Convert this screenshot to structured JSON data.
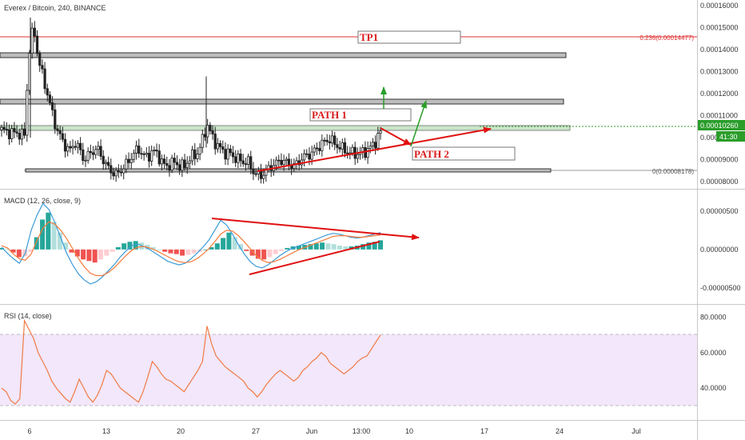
{
  "price_pane": {
    "title": "Everex / Bitcoin, 240, BINANCE",
    "current_price": "0.00010260",
    "countdown": "41:30",
    "fib_top_label": "0.236(0.00014477)",
    "fib_bottom_label": "0(0.00008178)"
  },
  "macd_pane": {
    "title": "MACD (12, 26, close, 9)"
  },
  "rsi_pane": {
    "title": "RSI (14, close)"
  },
  "annotations": {
    "tp1": "TP1",
    "path1": "PATH 1",
    "path2": "PATH 2"
  },
  "colors": {
    "up": "#26a69a",
    "down": "#ef5350",
    "candle": "#222222",
    "annotation_red": "#e01010",
    "path_green": "#2a9d2a",
    "rsi_line": "#f07a45",
    "rsi_band": "#f2e7fb",
    "macd_blue": "#3a9bd8",
    "macd_signal": "#f57c3b"
  },
  "chart_data": [
    {
      "type": "candlestick",
      "title": "Everex / Bitcoin, 240, BINANCE",
      "y_ticks": [
        "0.00016000",
        "0.00015000",
        "0.00014000",
        "0.00013000",
        "0.00012000",
        "0.00011000",
        "0.00010000",
        "0.00009000",
        "0.00008000"
      ],
      "y_tick_values": [
        0.00016,
        0.00015,
        0.00014,
        0.00013,
        0.00012,
        0.00011,
        0.0001,
        9e-05,
        8e-05
      ],
      "ylim": [
        7.68e-05,
        0.0001625
      ],
      "x_ticks": [
        "6",
        "13",
        "20",
        "27",
        "Jun",
        "13:00",
        "10",
        "17",
        "24",
        "Jul"
      ],
      "current_price": 0.0001026,
      "levels": [
        {
          "label": "0.236(0.00014477)",
          "value": 0.00014477,
          "color": "#e03030"
        },
        {
          "label": "0(0.00008178)",
          "value": 8.178e-05,
          "color": "#888888"
        }
      ],
      "zones": [
        {
          "from": 0.0001385,
          "to": 0.0001365
        },
        {
          "from": 0.0001155,
          "to": 0.0001135
        },
        {
          "from": 0.0001035,
          "to": 0.0001015
        }
      ],
      "trend": [
        0.0001035,
        0.000103,
        0.000102,
        0.0001025,
        0.0001015,
        0.000101,
        0.000138,
        0.000151,
        0.000136,
        0.000128,
        0.00012,
        0.000112,
        0.000104,
        0.0001,
        9.6e-05,
        9.4e-05,
        9.8e-05,
        9.5e-05,
        9e-05,
        9.2e-05,
        9.4e-05,
        9.5e-05,
        9.1e-05,
        8.7e-05,
        8.5e-05,
        8.3e-05,
        8.5e-05,
        8.7e-05,
        9e-05,
        9.3e-05,
        9.5e-05,
        9.2e-05,
        9.1e-05,
        9.4e-05,
        9.3e-05,
        8.9e-05,
        8.7e-05,
        8.8e-05,
        8.9e-05,
        8.7e-05,
        8.7e-05,
        9e-05,
        9.2e-05,
        9.3e-05,
        9.9e-05,
        0.000106,
        0.000101,
        9.7e-05,
        9.5e-05,
        9.3e-05,
        9.3e-05,
        9.1e-05,
        9e-05,
        8.9e-05,
        8.9e-05,
        8.5e-05,
        8.3e-05,
        8.3e-05,
        8.5e-05,
        8.7e-05,
        8.8e-05,
        9e-05,
        8.9e-05,
        8.8e-05,
        8.7e-05,
        8.9e-05,
        9.1e-05,
        9.2e-05,
        9.3e-05,
        9.5e-05,
        9.7e-05,
        9.85e-05,
        9.95e-05,
        9.7e-05,
        9.6e-05,
        9.45e-05,
        9.35e-05,
        9.3e-05,
        9.25e-05,
        9.35e-05,
        9.4e-05,
        9.6e-05,
        9.85e-05,
        0.0001026
      ]
    },
    {
      "type": "bar",
      "title": "MACD (12, 26, close, 9)",
      "y_ticks": [
        "0.00000500",
        "0.00000000",
        "-0.00000500"
      ],
      "y_tick_values": [
        5e-06,
        0,
        -5e-06
      ],
      "ylim": [
        -7.1e-06,
        7.8e-06
      ],
      "series": [
        {
          "name": "histogram",
          "values": [
            0.2,
            0.1,
            -0.4,
            -1.0,
            -0.9,
            -0.3,
            1.6,
            3.9,
            4.8,
            3.6,
            2.2,
            0.9,
            -0.4,
            -0.9,
            -1.3,
            -1.5,
            -1.7,
            -1.3,
            -0.8,
            -0.3,
            0.3,
            0.8,
            1.0,
            1.1,
            0.9,
            0.6,
            0.3,
            0.0,
            -0.3,
            -0.5,
            -0.6,
            -0.8,
            -0.7,
            -0.5,
            -0.3,
            0.0,
            0.3,
            0.8,
            1.5,
            2.2,
            1.6,
            0.7,
            -0.2,
            -0.8,
            -1.2,
            -1.3,
            -1.0,
            -0.6,
            -0.2,
            0.2,
            0.4,
            0.5,
            0.6,
            0.7,
            0.8,
            0.9,
            0.8,
            0.7,
            0.5,
            0.4,
            0.4,
            0.5,
            0.7,
            0.9,
            1.0,
            1.2
          ]
        },
        {
          "name": "macd",
          "values": [
            0.3,
            -0.5,
            -1.2,
            -1.8,
            -0.5,
            2.5,
            4.5,
            6.0,
            5.2,
            3.5,
            1.5,
            -0.5,
            -2.0,
            -3.2,
            -4.0,
            -4.5,
            -4.2,
            -3.6,
            -2.8,
            -2.0,
            -1.0,
            -0.2,
            0.5,
            0.7,
            0.4,
            0.0,
            -0.5,
            -1.0,
            -1.5,
            -1.8,
            -2.0,
            -1.8,
            -1.2,
            -0.5,
            0.3,
            1.2,
            2.5,
            3.8,
            3.2,
            2.0,
            0.6,
            -0.6,
            -1.6,
            -2.2,
            -2.4,
            -2.0,
            -1.4,
            -0.8,
            -0.3,
            0.1,
            0.4,
            0.7,
            1.0,
            1.3,
            1.6,
            1.9,
            2.1,
            2.0,
            1.8,
            1.6,
            1.5,
            1.6,
            1.8,
            2.0,
            2.2
          ]
        },
        {
          "name": "signal",
          "values": [
            0.5,
            0.2,
            -0.6,
            -1.2,
            -1.4,
            -0.6,
            1.2,
            2.8,
            3.6,
            3.3,
            2.5,
            1.4,
            0.1,
            -1.2,
            -2.3,
            -3.1,
            -3.4,
            -3.4,
            -3.0,
            -2.4,
            -1.6,
            -0.8,
            -0.1,
            0.3,
            0.4,
            0.2,
            -0.1,
            -0.5,
            -0.9,
            -1.3,
            -1.6,
            -1.7,
            -1.6,
            -1.2,
            -0.6,
            0.1,
            1.0,
            2.0,
            2.5,
            2.4,
            1.8,
            1.0,
            0.1,
            -0.8,
            -1.4,
            -1.7,
            -1.6,
            -1.3,
            -0.9,
            -0.5,
            -0.1,
            0.2,
            0.5,
            0.8,
            1.1,
            1.4,
            1.7,
            1.8,
            1.8,
            1.7,
            1.6,
            1.6,
            1.7,
            1.8,
            1.9
          ]
        }
      ]
    },
    {
      "type": "line",
      "title": "RSI (14, close)",
      "y_ticks": [
        "80.0000",
        "60.0000",
        "40.0000"
      ],
      "y_tick_values": [
        80,
        60,
        40
      ],
      "ylim": [
        22,
        87
      ],
      "band": [
        30,
        70
      ],
      "series": [
        {
          "name": "RSI",
          "values": [
            40,
            38,
            33,
            31,
            34,
            78,
            73,
            68,
            60,
            55,
            50,
            44,
            40,
            37,
            34,
            32,
            38,
            45,
            40,
            35,
            32,
            36,
            42,
            50,
            48,
            44,
            40,
            38,
            36,
            34,
            32,
            38,
            46,
            55,
            52,
            48,
            45,
            44,
            42,
            40,
            38,
            42,
            46,
            50,
            55,
            75,
            65,
            58,
            55,
            52,
            50,
            48,
            46,
            44,
            40,
            38,
            35,
            38,
            42,
            45,
            48,
            50,
            48,
            46,
            44,
            46,
            50,
            52,
            55,
            57,
            60,
            58,
            54,
            52,
            50,
            48,
            50,
            52,
            55,
            57,
            58,
            62,
            66,
            70
          ]
        }
      ]
    }
  ]
}
